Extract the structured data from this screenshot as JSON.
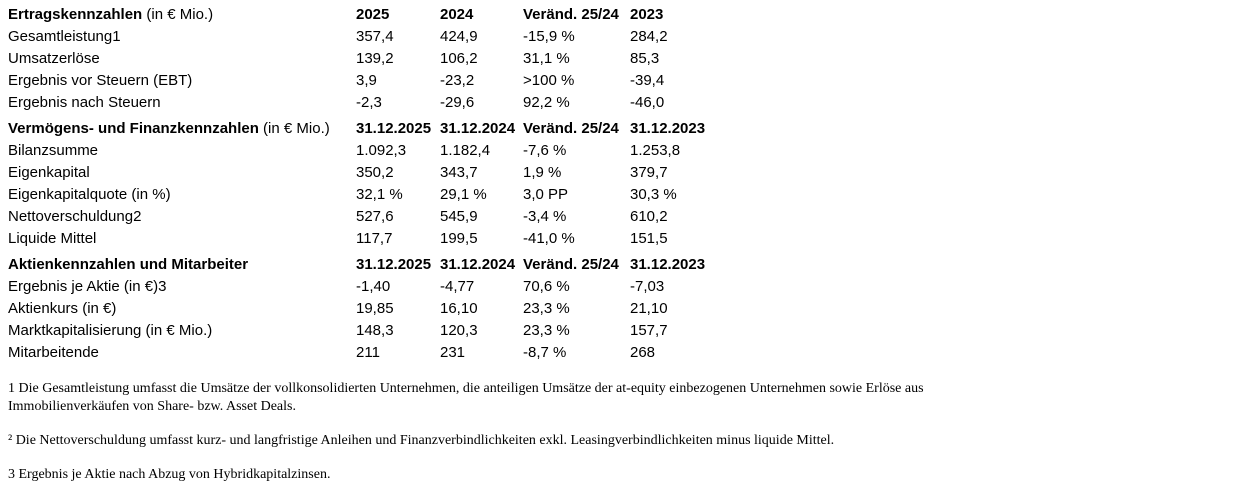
{
  "sections": [
    {
      "title": "Ertragskennzahlen",
      "unit": "(in € Mio.)",
      "columns": [
        "2025",
        "2024",
        "Veränd. 25/24",
        "2023"
      ],
      "rows": [
        [
          "Gesamtleistung1",
          "357,4",
          "424,9",
          "-15,9 %",
          "284,2"
        ],
        [
          "Umsatzerlöse",
          "139,2",
          "106,2",
          "31,1 %",
          "85,3"
        ],
        [
          "Ergebnis vor Steuern (EBT)",
          "3,9",
          "-23,2",
          ">100 %",
          "-39,4"
        ],
        [
          "Ergebnis nach Steuern",
          "-2,3",
          "-29,6",
          "92,2 %",
          "-46,0"
        ]
      ]
    },
    {
      "title": "Vermögens- und Finanzkennzahlen",
      "unit": "(in € Mio.)",
      "columns": [
        "31.12.2025",
        "31.12.2024",
        "Veränd. 25/24",
        "31.12.2023"
      ],
      "rows": [
        [
          "Bilanzsumme",
          "1.092,3",
          "1.182,4",
          "-7,6 %",
          "1.253,8"
        ],
        [
          "Eigenkapital",
          "350,2",
          "343,7",
          "1,9 %",
          "379,7"
        ],
        [
          "Eigenkapitalquote (in %)",
          "32,1 %",
          "29,1 %",
          "3,0 PP",
          "30,3 %"
        ],
        [
          "Nettoverschuldung2",
          "527,6",
          "545,9",
          "-3,4 %",
          "610,2"
        ],
        [
          "Liquide Mittel",
          "117,7",
          "199,5",
          "-41,0 %",
          "151,5"
        ]
      ]
    },
    {
      "title": "Aktienkennzahlen und Mitarbeiter",
      "columns": [
        "31.12.2025",
        "31.12.2024",
        "Veränd. 25/24",
        "31.12.2023"
      ],
      "rows": [
        [
          "Ergebnis je Aktie (in €)3",
          "-1,40",
          "-4,77",
          "70,6 %",
          "-7,03"
        ],
        [
          "Aktienkurs (in €)",
          "19,85",
          "16,10",
          "23,3 %",
          "21,10"
        ],
        [
          "Marktkapitalisierung (in € Mio.)",
          "148,3",
          "120,3",
          "23,3 %",
          "157,7"
        ],
        [
          "Mitarbeitende",
          "211",
          "231",
          "-8,7 %",
          "268"
        ]
      ]
    }
  ],
  "footnotes": [
    "1 Die Gesamtleistung umfasst die Umsätze der vollkonsolidierten Unternehmen, die anteiligen Umsätze der at-equity einbezogenen Unternehmen sowie Erlöse aus Immobilienverkäufen von Share- bzw. Asset Deals.",
    "² Die Nettoverschuldung umfasst kurz- und langfristige Anleihen und Finanzverbindlichkeiten exkl. Leasingverbindlichkeiten minus liquide Mittel.",
    "3 Ergebnis je Aktie nach Abzug von Hybridkapitalzinsen."
  ]
}
